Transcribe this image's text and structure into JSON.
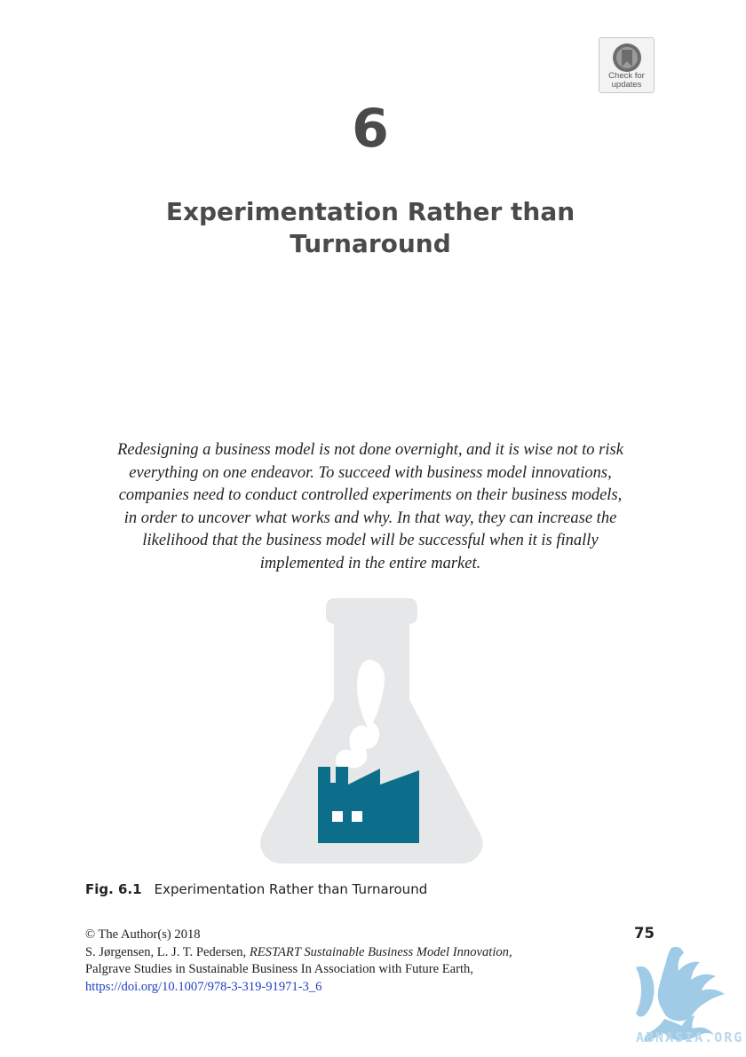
{
  "badge": {
    "line1": "Check for",
    "line2": "updates",
    "icon": "bookmark-ribbon-icon"
  },
  "chapter": {
    "number": "6",
    "title": "Experimentation Rather than Turnaround"
  },
  "abstract": {
    "lines": [
      "Redesigning a business model is not done overnight, and it is wise not to risk",
      "everything on one endeavor. To succeed with business model innovations,",
      "companies need to conduct controlled experiments on their business models,",
      "in order to uncover what works and why. In that way, they can increase the",
      "likelihood that the business model will be successful when it is finally",
      "implemented in the entire market."
    ]
  },
  "figure": {
    "icon": "flask-with-factory-icon",
    "colors": {
      "flask": "#e6e7e8",
      "factory": "#0d6e8c"
    },
    "label": "Fig. 6.1",
    "caption": "Experimentation Rather than Turnaround"
  },
  "page_number": "75",
  "copyright": {
    "line1": "© The Author(s) 2018",
    "authors": "S. Jørgensen, L. J. T. Pedersen, ",
    "book_title": "RESTART Sustainable Business Model Innovation",
    "after_title": ",",
    "series": "Palgrave Studies in Sustainable Business In Association with Future Earth,",
    "doi": "https://doi.org/10.1007/978-3-319-91971-3_6"
  },
  "watermark": {
    "text": "ABNASIA.ORG",
    "icon": "griffin-logo-icon",
    "color": "#8fc3e3"
  }
}
